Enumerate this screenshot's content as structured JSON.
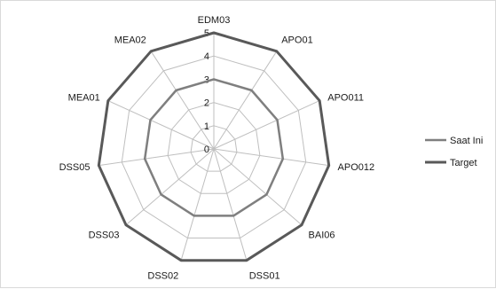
{
  "chart_data": {
    "type": "radar",
    "categories": [
      "EDM03",
      "APO01",
      "APO011",
      "APO012",
      "BAI06",
      "DSS01",
      "DSS02",
      "DSS03",
      "DSS05",
      "MEA01",
      "MEA02"
    ],
    "series": [
      {
        "name": "Saat Ini",
        "values": [
          3,
          3,
          3,
          3,
          3,
          3,
          3,
          3,
          3,
          3,
          3
        ],
        "color": "#7f7f7f"
      },
      {
        "name": "Target",
        "values": [
          5,
          5,
          5,
          5,
          5,
          5,
          5,
          5,
          5,
          5,
          5
        ],
        "color": "#595959"
      }
    ],
    "rlim": [
      0,
      5
    ],
    "ticks": [
      "0",
      "1",
      "2",
      "3",
      "4",
      "5"
    ],
    "grid": true,
    "legend_position": "right"
  }
}
